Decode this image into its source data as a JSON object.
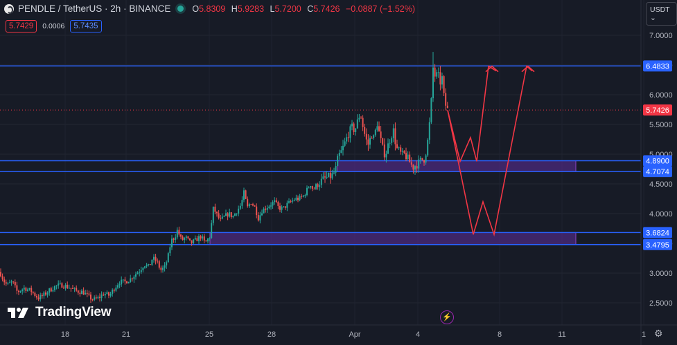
{
  "header": {
    "title": "PENDLE / TetherUS · 2h · BINANCE",
    "ohlc": [
      {
        "k": "O",
        "v": "5.8309"
      },
      {
        "k": "H",
        "v": "5.9283"
      },
      {
        "k": "L",
        "v": "5.7200"
      },
      {
        "k": "C",
        "v": "5.7426"
      }
    ],
    "change": "−0.0887 (−1.52%)",
    "status_color": "#26a69a"
  },
  "quotes": {
    "sell": "5.7429",
    "spread": "0.0006",
    "buy": "5.7435"
  },
  "currency_button": "USDT ⌄",
  "branding": "TradingView",
  "colors": {
    "background": "#171b26",
    "up": "#26a69a",
    "down": "#ef5350",
    "level_line": "#2962ff",
    "zone_fill": "#5d2e9c",
    "arrow": "#f23645"
  },
  "chart_data": {
    "type": "candlestick",
    "symbol": "PENDLE / TetherUS",
    "interval": "2h",
    "exchange": "BINANCE",
    "ylim": [
      2.25,
      7.2
    ],
    "y_ticks": [
      2.5,
      3.0,
      3.5,
      4.0,
      4.5,
      5.0,
      5.5,
      6.0,
      6.5,
      7.0
    ],
    "y_tick_labels": [
      "2.5000",
      "3.0000",
      "3.5000",
      "4.0000",
      "4.5000",
      "5.0000",
      "5.5000",
      "6.0000",
      "6.5000",
      "7.0000"
    ],
    "x_ticks": [
      "18",
      "21",
      "25",
      "28",
      "Apr",
      "4",
      "8",
      "11",
      "1"
    ],
    "last_price": {
      "value": 5.7426,
      "label": "5.7426",
      "color": "#f23645"
    },
    "price_path": [
      [
        0,
        3.02
      ],
      [
        5,
        2.88
      ],
      [
        10,
        2.8
      ],
      [
        18,
        2.85
      ],
      [
        25,
        2.68
      ],
      [
        35,
        2.75
      ],
      [
        45,
        2.7
      ],
      [
        55,
        2.58
      ],
      [
        62,
        2.62
      ],
      [
        70,
        2.7
      ],
      [
        80,
        2.78
      ],
      [
        90,
        2.8
      ],
      [
        100,
        2.76
      ],
      [
        110,
        2.7
      ],
      [
        120,
        2.68
      ],
      [
        128,
        2.6
      ],
      [
        135,
        2.55
      ],
      [
        142,
        2.58
      ],
      [
        150,
        2.66
      ],
      [
        158,
        2.62
      ],
      [
        165,
        2.75
      ],
      [
        172,
        2.85
      ],
      [
        180,
        2.85
      ],
      [
        188,
        2.9
      ],
      [
        195,
        2.98
      ],
      [
        202,
        3.05
      ],
      [
        208,
        3.15
      ],
      [
        215,
        3.1
      ],
      [
        220,
        3.25
      ],
      [
        226,
        3.2
      ],
      [
        232,
        3.05
      ],
      [
        238,
        3.1
      ],
      [
        243,
        3.3
      ],
      [
        247,
        3.55
      ],
      [
        252,
        3.6
      ],
      [
        256,
        3.72
      ],
      [
        262,
        3.55
      ],
      [
        268,
        3.6
      ],
      [
        275,
        3.5
      ],
      [
        282,
        3.55
      ],
      [
        290,
        3.62
      ],
      [
        296,
        3.5
      ],
      [
        303,
        3.62
      ],
      [
        308,
        4.1
      ],
      [
        312,
        4.0
      ],
      [
        318,
        3.88
      ],
      [
        324,
        3.95
      ],
      [
        330,
        4.0
      ],
      [
        336,
        3.95
      ],
      [
        342,
        4.05
      ],
      [
        348,
        4.15
      ],
      [
        352,
        4.35
      ],
      [
        357,
        4.1
      ],
      [
        362,
        4.2
      ],
      [
        368,
        4.1
      ],
      [
        373,
        3.92
      ],
      [
        378,
        4.05
      ],
      [
        384,
        4.1
      ],
      [
        390,
        4.15
      ],
      [
        396,
        4.2
      ],
      [
        402,
        4.1
      ],
      [
        408,
        4.08
      ],
      [
        414,
        4.15
      ],
      [
        420,
        4.2
      ],
      [
        426,
        4.25
      ],
      [
        432,
        4.25
      ],
      [
        438,
        4.3
      ],
      [
        443,
        4.4
      ],
      [
        448,
        4.5
      ],
      [
        452,
        4.4
      ],
      [
        458,
        4.5
      ],
      [
        464,
        4.55
      ],
      [
        470,
        4.6
      ],
      [
        476,
        4.62
      ],
      [
        480,
        4.65
      ],
      [
        484,
        4.72
      ],
      [
        488,
        4.95
      ],
      [
        493,
        5.05
      ],
      [
        498,
        5.2
      ],
      [
        503,
        5.35
      ],
      [
        508,
        5.45
      ],
      [
        512,
        5.4
      ],
      [
        516,
        5.55
      ],
      [
        520,
        5.7
      ],
      [
        524,
        5.45
      ],
      [
        528,
        5.25
      ],
      [
        532,
        5.15
      ],
      [
        536,
        5.35
      ],
      [
        540,
        5.25
      ],
      [
        544,
        5.55
      ],
      [
        548,
        5.3
      ],
      [
        552,
        5.1
      ],
      [
        556,
        4.98
      ],
      [
        560,
        5.15
      ],
      [
        564,
        5.3
      ],
      [
        568,
        5.4
      ],
      [
        572,
        5.1
      ],
      [
        576,
        5.05
      ],
      [
        580,
        4.98
      ],
      [
        584,
        5.0
      ],
      [
        588,
        4.93
      ],
      [
        592,
        4.85
      ],
      [
        596,
        4.78
      ],
      [
        600,
        4.82
      ],
      [
        604,
        4.85
      ],
      [
        608,
        4.9
      ],
      [
        612,
        4.92
      ],
      [
        616,
        5.1
      ],
      [
        619,
        5.4
      ],
      [
        622,
        5.8
      ],
      [
        625,
        6.45
      ],
      [
        628,
        6.3
      ],
      [
        632,
        6.35
      ],
      [
        635,
        6.2
      ],
      [
        638,
        6.28
      ],
      [
        641,
        5.92
      ],
      [
        644,
        5.79
      ],
      [
        646,
        5.74
      ]
    ],
    "levels": [
      {
        "value": 6.4833,
        "label": "6.4833"
      },
      {
        "value": 4.89,
        "label": "4.8900"
      },
      {
        "value": 4.7074,
        "label": "4.7074"
      },
      {
        "value": 3.6824,
        "label": "3.6824"
      },
      {
        "value": 3.4795,
        "label": "3.4795"
      }
    ],
    "zones": [
      {
        "top": 4.89,
        "bottom": 4.7074
      },
      {
        "top": 3.6824,
        "bottom": 3.4795
      }
    ],
    "projection": [
      {
        "i": 646,
        "y": 5.74
      },
      {
        "i": 664,
        "y": 4.88
      },
      {
        "i": 679,
        "y": 5.28
      },
      {
        "i": 688,
        "y": 4.88
      },
      {
        "i": 705,
        "y": 6.48
      },
      {
        "i": 716,
        "y": 6.4
      }
    ],
    "projection2": [
      {
        "i": 646,
        "y": 5.74
      },
      {
        "i": 683,
        "y": 3.65
      },
      {
        "i": 697,
        "y": 4.2
      },
      {
        "i": 713,
        "y": 3.65
      },
      {
        "i": 760,
        "y": 6.48
      },
      {
        "i": 768,
        "y": 6.4
      }
    ]
  }
}
